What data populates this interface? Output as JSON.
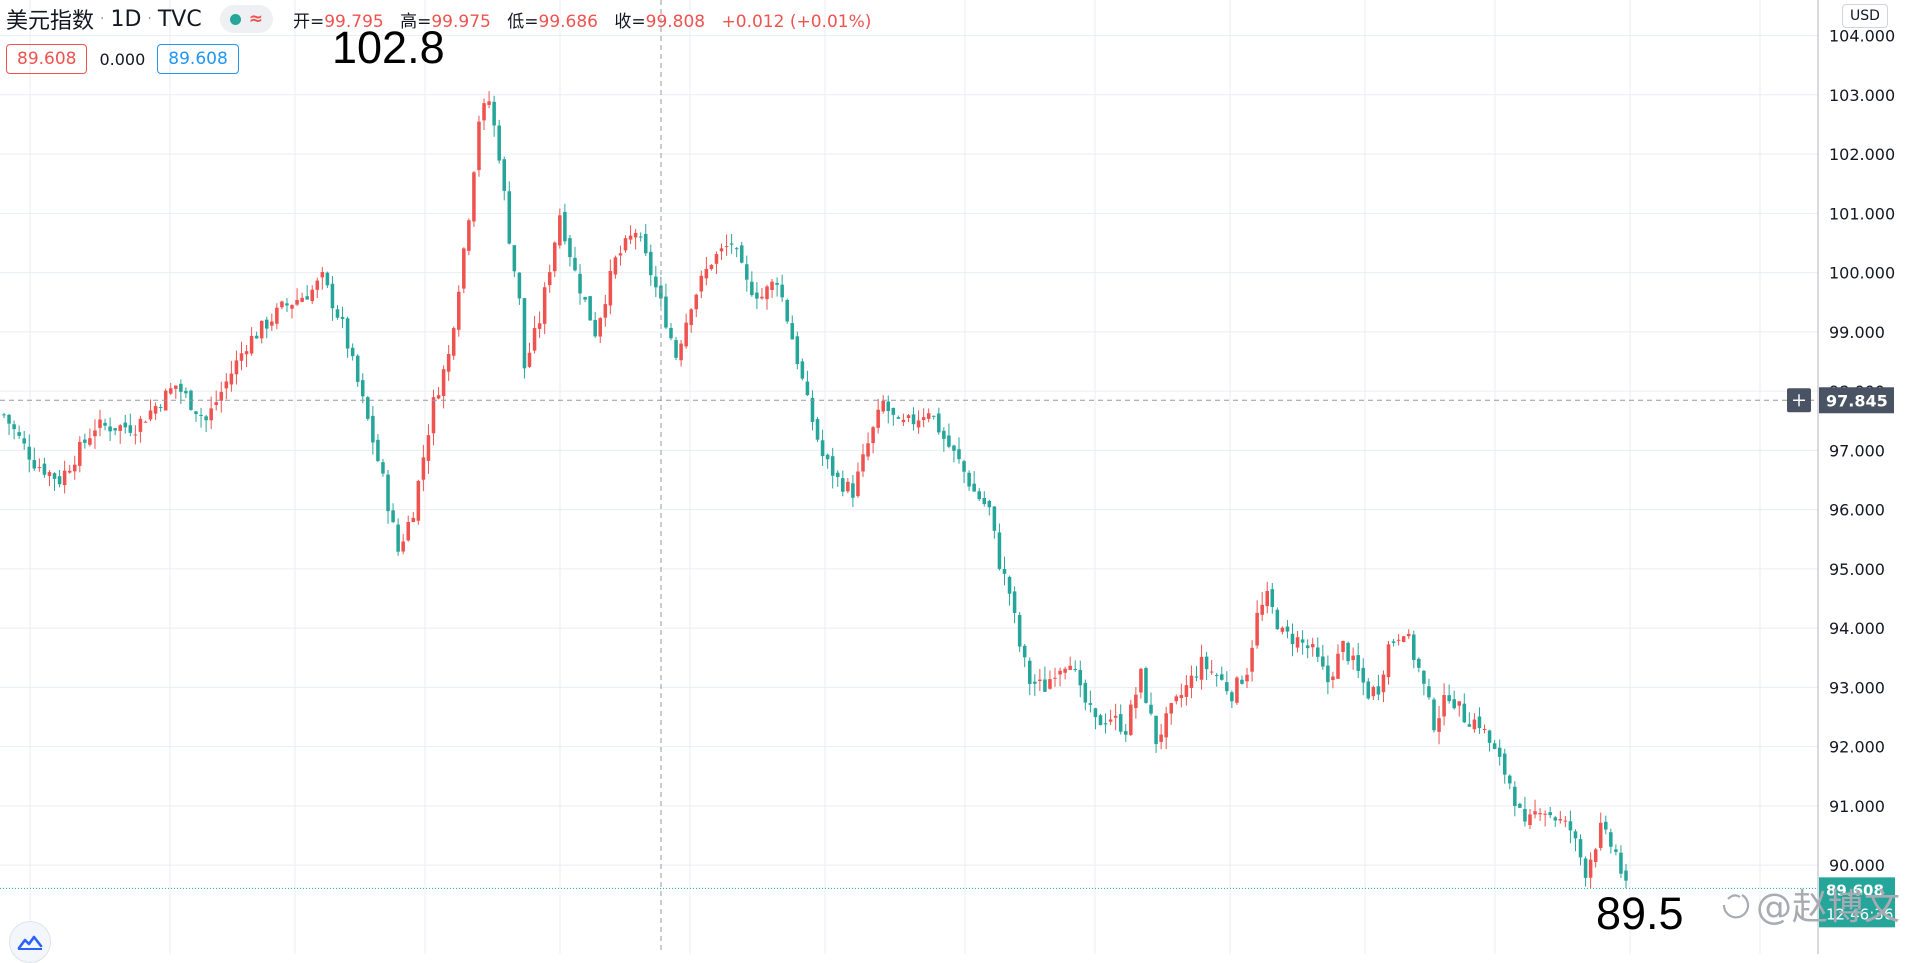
{
  "header": {
    "symbol_name": "美元指数",
    "interval": "1D",
    "exchange": "TVC",
    "open_label": "开=",
    "open_value": "99.795",
    "high_label": "高=",
    "high_value": "99.975",
    "low_label": "低=",
    "low_value": "99.686",
    "close_label": "收=",
    "close_value": "99.808",
    "change": "+0.012 (+0.01%)",
    "status_icon": "green-dot-icon",
    "wave_icon": "approx-wave-icon"
  },
  "boxes": {
    "red_value": "89.608",
    "zero_value": "0.000",
    "blue_value": "89.608"
  },
  "currency_button": "USD",
  "annotations": {
    "high_note": "102.8",
    "low_note": "89.5"
  },
  "crosshair": {
    "price": "97.845",
    "price_value": 97.845,
    "plus_icon": "plus-icon"
  },
  "last_price": {
    "line1": "89.608",
    "line2": "12:46:36",
    "value": 89.608
  },
  "watermark": "@赵博文",
  "logo_icon": "tradingview-cloud-icon",
  "colors": {
    "up": "#ef5350",
    "down": "#26a69a",
    "grid": "#e9eef3",
    "crosshair": "#9598a1",
    "price_tag": "#4a5363",
    "last_tag": "#26a69a"
  },
  "chart_data": {
    "type": "candlestick",
    "symbol": "美元指数",
    "interval": "1D",
    "y_axis": {
      "ylim": [
        88.5,
        104.6
      ],
      "tick_labels": [
        "104.000",
        "103.000",
        "102.000",
        "101.000",
        "100.000",
        "99.000",
        "98.000",
        "97.000",
        "96.000",
        "95.000",
        "94.000",
        "93.000",
        "92.000",
        "91.000",
        "90.000"
      ],
      "tick_values": [
        104,
        103,
        102,
        101,
        100,
        99,
        98,
        97,
        96,
        95,
        94,
        93,
        92,
        91,
        90
      ]
    },
    "candle_count": 270,
    "close_path": [
      [
        0,
        97.6
      ],
      [
        6,
        96.8
      ],
      [
        11,
        96.5
      ],
      [
        18,
        97.4
      ],
      [
        26,
        97.4
      ],
      [
        34,
        98.1
      ],
      [
        40,
        97.5
      ],
      [
        48,
        98.8
      ],
      [
        55,
        99.4
      ],
      [
        61,
        99.7
      ],
      [
        63,
        99.9
      ],
      [
        67,
        99.1
      ],
      [
        72,
        97.5
      ],
      [
        75,
        96.5
      ],
      [
        78,
        95.3
      ],
      [
        81,
        96.0
      ],
      [
        85,
        97.8
      ],
      [
        88,
        98.6
      ],
      [
        90,
        99.8
      ],
      [
        92,
        101.0
      ],
      [
        94,
        102.6
      ],
      [
        96,
        102.9
      ],
      [
        98,
        102.0
      ],
      [
        100,
        100.6
      ],
      [
        102,
        99.5
      ],
      [
        103,
        98.4
      ],
      [
        106,
        99.2
      ],
      [
        110,
        101.0
      ],
      [
        113,
        100.0
      ],
      [
        117,
        99.0
      ],
      [
        121,
        100.2
      ],
      [
        125,
        100.7
      ],
      [
        128,
        100.0
      ],
      [
        131,
        99.2
      ],
      [
        133,
        98.6
      ],
      [
        136,
        99.5
      ],
      [
        140,
        100.2
      ],
      [
        144,
        100.5
      ],
      [
        147,
        99.8
      ],
      [
        150,
        99.6
      ],
      [
        153,
        99.9
      ],
      [
        156,
        98.9
      ],
      [
        159,
        97.8
      ],
      [
        162,
        96.9
      ],
      [
        165,
        96.5
      ],
      [
        168,
        96.3
      ],
      [
        171,
        97.1
      ],
      [
        174,
        97.8
      ],
      [
        177,
        97.4
      ],
      [
        180,
        97.5
      ],
      [
        183,
        97.7
      ],
      [
        186,
        97.2
      ],
      [
        189,
        96.8
      ],
      [
        192,
        96.3
      ],
      [
        195,
        96.0
      ],
      [
        197,
        95.1
      ],
      [
        199,
        94.6
      ],
      [
        201,
        93.7
      ],
      [
        203,
        93.1
      ],
      [
        206,
        93.0
      ],
      [
        208,
        93.3
      ],
      [
        211,
        93.5
      ],
      [
        213,
        92.9
      ],
      [
        216,
        92.4
      ],
      [
        219,
        92.5
      ],
      [
        222,
        92.3
      ],
      [
        225,
        93.2
      ],
      [
        228,
        92.1
      ],
      [
        231,
        92.6
      ],
      [
        234,
        93.0
      ],
      [
        237,
        93.4
      ],
      [
        240,
        93.2
      ],
      [
        243,
        92.9
      ],
      [
        246,
        93.3
      ],
      [
        248,
        94.2
      ],
      [
        250,
        94.5
      ],
      [
        253,
        93.9
      ],
      [
        256,
        93.8
      ],
      [
        259,
        93.6
      ],
      [
        262,
        93.1
      ],
      [
        265,
        93.7
      ],
      [
        267,
        93.4
      ],
      [
        270,
        92.9
      ],
      [
        272,
        93.0
      ],
      [
        274,
        93.7
      ],
      [
        277,
        94.0
      ],
      [
        280,
        93.3
      ],
      [
        283,
        92.4
      ],
      [
        286,
        92.9
      ],
      [
        289,
        92.5
      ],
      [
        292,
        92.4
      ],
      [
        295,
        91.9
      ],
      [
        298,
        91.4
      ],
      [
        301,
        90.6
      ],
      [
        304,
        91.0
      ],
      [
        307,
        90.8
      ],
      [
        310,
        90.6
      ],
      [
        313,
        89.9
      ],
      [
        316,
        90.6
      ],
      [
        319,
        90.2
      ],
      [
        321,
        89.6
      ]
    ],
    "highlighted_high": 102.8,
    "highlighted_low": 89.5,
    "current_price": 89.608,
    "crosshair_price": 97.845,
    "grid": true,
    "legend": "none"
  }
}
